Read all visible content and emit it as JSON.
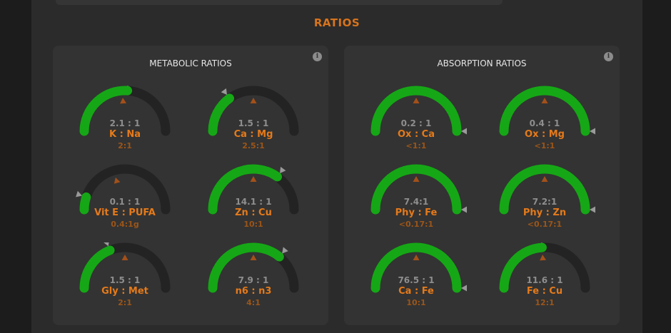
{
  "section": {
    "title": "RATIOS"
  },
  "colors": {
    "accent": "#e57a1a",
    "gauge_fill": "#16a716",
    "gauge_track": "#232323"
  },
  "icons": {
    "info": "i"
  },
  "panels": [
    {
      "title": "METABOLIC RATIOS",
      "gauges": [
        {
          "value": "2.1 : 1",
          "name": "K : Na",
          "target": "2:1",
          "fill": 0.52,
          "target_pos": 0.48
        },
        {
          "value": "1.5 : 1",
          "name": "Ca : Mg",
          "target": "2.5:1",
          "fill": 0.3,
          "target_pos": 0.5
        },
        {
          "value": "0.1 : 1",
          "name": "Vit E : PUFA",
          "target": "0.4:1g",
          "fill": 0.1,
          "target_pos": 0.41
        },
        {
          "value": "14.1 : 1",
          "name": "Zn : Cu",
          "target": "10:1",
          "fill": 0.7,
          "target_pos": 0.5
        },
        {
          "value": "1.5 : 1",
          "name": "Gly : Met",
          "target": "2:1",
          "fill": 0.38,
          "target_pos": 0.5
        },
        {
          "value": "7.9 : 1",
          "name": "n6 : n3",
          "target": "4:1",
          "fill": 0.72,
          "target_pos": 0.5
        }
      ]
    },
    {
      "title": "ABSORPTION RATIOS",
      "gauges": [
        {
          "value": "0.2 : 1",
          "name": "Ox : Ca",
          "target": "<1:1",
          "fill": 1.0,
          "target_pos": 0.5
        },
        {
          "value": "0.4 : 1",
          "name": "Ox : Mg",
          "target": "<1:1",
          "fill": 1.0,
          "target_pos": 0.5
        },
        {
          "value": "7.4:1",
          "name": "Phy : Fe",
          "target": "<0.17:1",
          "fill": 1.0,
          "target_pos": 0.5
        },
        {
          "value": "7.2:1",
          "name": "Phy : Zn",
          "target": "<0.17:1",
          "fill": 1.0,
          "target_pos": 0.5
        },
        {
          "value": "76.5 : 1",
          "name": "Ca : Fe",
          "target": "10:1",
          "fill": 1.0,
          "target_pos": 0.5
        },
        {
          "value": "11.6 : 1",
          "name": "Fe : Cu",
          "target": "12:1",
          "fill": 0.48,
          "target_pos": 0.48
        }
      ]
    }
  ]
}
